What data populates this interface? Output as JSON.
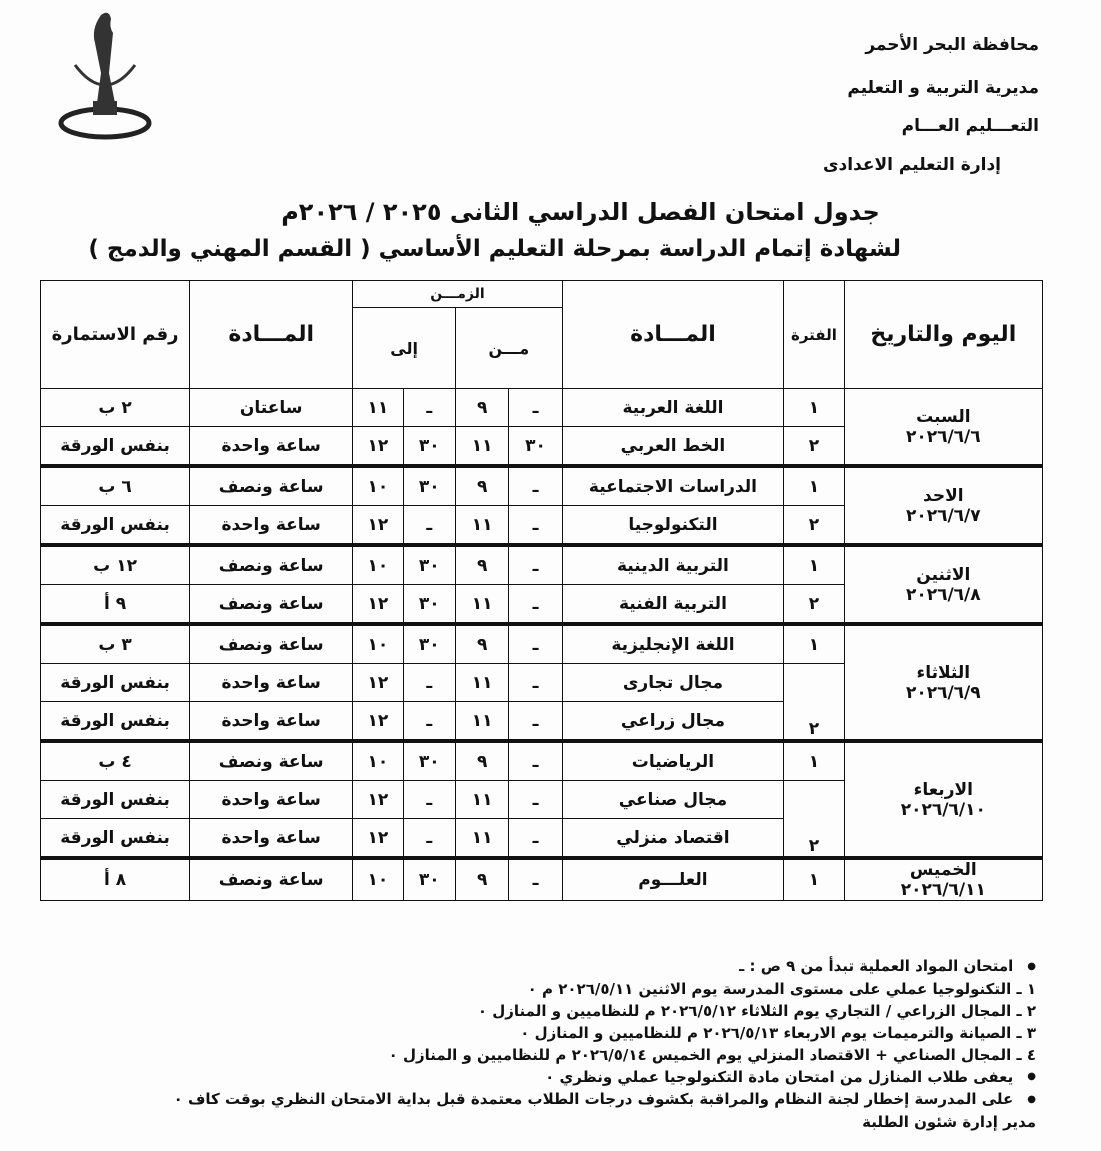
{
  "header": {
    "line1": "محافظة البحر الأحمر",
    "line2": "مديرية التربية و التعليم",
    "line3": "التعـــليم العـــام",
    "line4": "إدارة التعليم الاعدادى"
  },
  "title": {
    "line1": "جدول امتحان الفصل الدراسي الثانى ٢٠٢٥ / ٢٠٢٦م",
    "line2": "لشهادة إتمام الدراسة بمرحلة التعليم الأساسي ( القسم المهني والدمج )"
  },
  "table": {
    "headers": {
      "day": "اليوم والتاريخ",
      "period": "الفترة",
      "subject": "المـــادة",
      "time": "الزمـــن",
      "from": "مـــن",
      "to": "إلى",
      "duration": "المـــادة",
      "form": "رقم الاستمارة"
    },
    "days": [
      {
        "day": "السبت",
        "date": "٢٠٢٦/٦/٦",
        "rows": [
          {
            "period": "١",
            "subject": "اللغة العربية",
            "from_m": "ـ",
            "from_h": "٩",
            "to_m": "ـ",
            "to_h": "١١",
            "duration": "ساعتان",
            "form": "٢ ب"
          },
          {
            "period": "٢",
            "subject": "الخط العربي",
            "from_m": "٣٠",
            "from_h": "١١",
            "to_m": "٣٠",
            "to_h": "١٢",
            "duration": "ساعة واحدة",
            "form": "بنفس الورقة"
          }
        ]
      },
      {
        "day": "الاحد",
        "date": "٢٠٢٦/٦/٧",
        "rows": [
          {
            "period": "١",
            "subject": "الدراسات الاجتماعية",
            "from_m": "ـ",
            "from_h": "٩",
            "to_m": "٣٠",
            "to_h": "١٠",
            "duration": "ساعة ونصف",
            "form": "٦ ب"
          },
          {
            "period": "٢",
            "subject": "التكنولوجيا",
            "from_m": "ـ",
            "from_h": "١١",
            "to_m": "ـ",
            "to_h": "١٢",
            "duration": "ساعة واحدة",
            "form": "بنفس الورقة"
          }
        ]
      },
      {
        "day": "الاثنين",
        "date": "٢٠٢٦/٦/٨",
        "rows": [
          {
            "period": "١",
            "subject": "التربية الدينية",
            "from_m": "ـ",
            "from_h": "٩",
            "to_m": "٣٠",
            "to_h": "١٠",
            "duration": "ساعة ونصف",
            "form": "١٢ ب"
          },
          {
            "period": "٢",
            "subject": "التربية الفنية",
            "from_m": "ـ",
            "from_h": "١١",
            "to_m": "٣٠",
            "to_h": "١٢",
            "duration": "ساعة ونصف",
            "form": "٩ أ"
          }
        ]
      },
      {
        "day": "الثلاثاء",
        "date": "٢٠٢٦/٦/٩",
        "rows": [
          {
            "period": "١",
            "subject": "اللغة الإنجليزية",
            "from_m": "ـ",
            "from_h": "٩",
            "to_m": "٣٠",
            "to_h": "١٠",
            "duration": "ساعة ونصف",
            "form": "٣ ب"
          },
          {
            "period": "٢",
            "subject": "مجال تجارى",
            "from_m": "ـ",
            "from_h": "١١",
            "to_m": "ـ",
            "to_h": "١٢",
            "duration": "ساعة واحدة",
            "form": "بنفس الورقة"
          },
          {
            "period": "",
            "subject": "مجال زراعي",
            "from_m": "ـ",
            "from_h": "١١",
            "to_m": "ـ",
            "to_h": "١٢",
            "duration": "ساعة واحدة",
            "form": "بنفس الورقة"
          }
        ]
      },
      {
        "day": "الاربعاء",
        "date": "٢٠٢٦/٦/١٠",
        "rows": [
          {
            "period": "١",
            "subject": "الرياضيات",
            "from_m": "ـ",
            "from_h": "٩",
            "to_m": "٣٠",
            "to_h": "١٠",
            "duration": "ساعة ونصف",
            "form": "٤ ب"
          },
          {
            "period": "٢",
            "subject": "مجال صناعي",
            "from_m": "ـ",
            "from_h": "١١",
            "to_m": "ـ",
            "to_h": "١٢",
            "duration": "ساعة واحدة",
            "form": "بنفس الورقة"
          },
          {
            "period": "",
            "subject": "اقتصاد منزلي",
            "from_m": "ـ",
            "from_h": "١١",
            "to_m": "ـ",
            "to_h": "١٢",
            "duration": "ساعة واحدة",
            "form": "بنفس الورقة"
          }
        ]
      },
      {
        "day": "الخميس",
        "date": "٢٠٢٦/٦/١١",
        "rows": [
          {
            "period": "١",
            "subject": "العلـــوم",
            "from_m": "ـ",
            "from_h": "٩",
            "to_m": "٣٠",
            "to_h": "١٠",
            "duration": "ساعة ونصف",
            "form": "٨ أ"
          }
        ]
      }
    ]
  },
  "notes": [
    {
      "bullet": true,
      "text": "امتحان المواد العملية تبدأ من ٩ ص : ـ"
    },
    {
      "bullet": false,
      "text": "١ ـ التكنولوجيا عملي على مستوى المدرسة يوم الاثنين ٢٠٢٦/٥/١١ م ٠"
    },
    {
      "bullet": false,
      "text": "٢ ـ المجال الزراعي / التجاري يوم الثلاثاء ٢٠٢٦/٥/١٢ م للنظاميين و المنازل ٠"
    },
    {
      "bullet": false,
      "text": "٣ ـ الصيانة والترميمات يوم الاربعاء ٢٠٢٦/٥/١٣ م للنظاميين و المنازل ٠"
    },
    {
      "bullet": false,
      "text": "٤ ـ المجال الصناعي + الاقتصاد المنزلي يوم الخميس ٢٠٢٦/٥/١٤ م للنظاميين و المنازل ٠"
    },
    {
      "bullet": true,
      "text": "يعفى طلاب المنازل من امتحان مادة التكنولوجيا عملي ونظري ٠"
    },
    {
      "bullet": true,
      "text": "على المدرسة إخطار لجنة النظام والمراقبة بكشوف درجات الطلاب معتمدة قبل بداية الامتحان النظري بوقت كاف ٠"
    },
    {
      "bullet": false,
      "text": "مدير إدارة شئون الطلبة"
    }
  ]
}
